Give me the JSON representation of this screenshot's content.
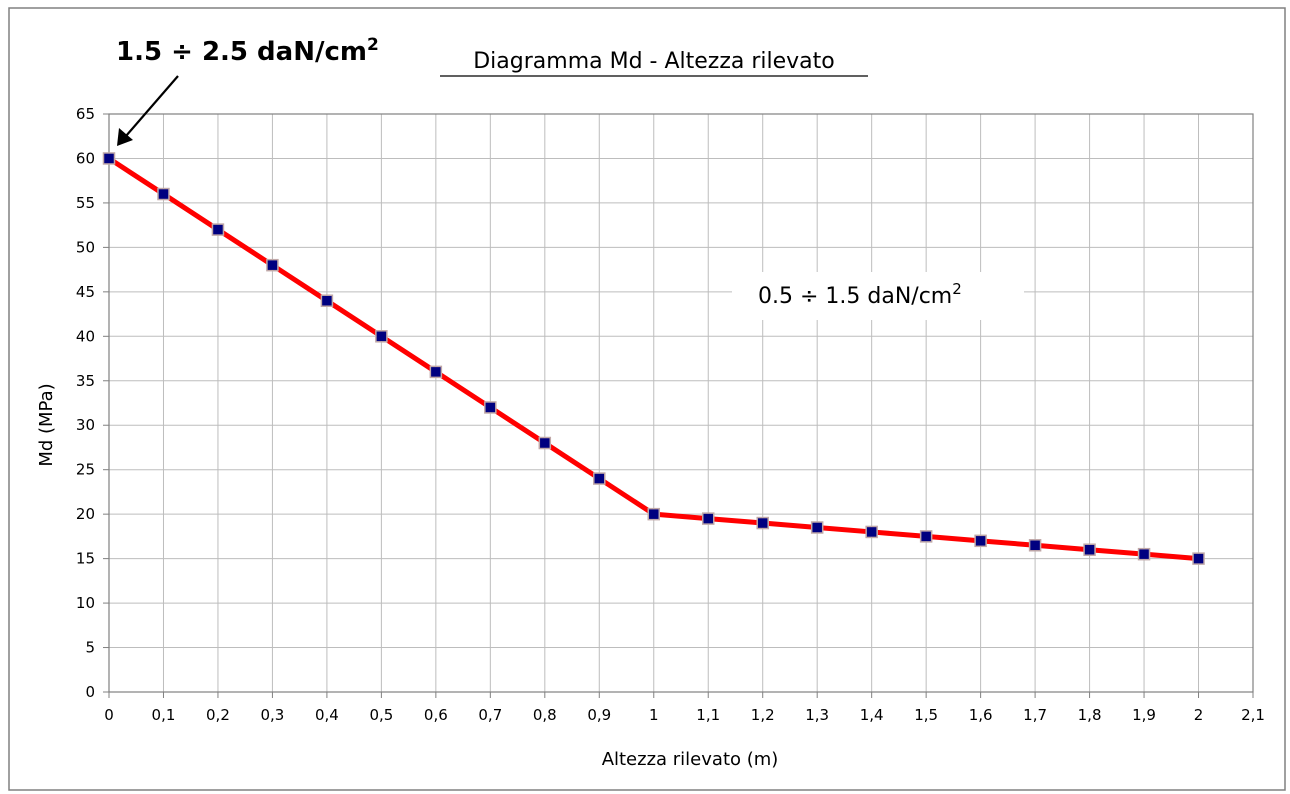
{
  "chart_data": {
    "type": "line",
    "title": "Diagramma Md - Altezza rilevato",
    "xlabel": "Altezza rilevato (m)",
    "ylabel": "Md (MPa)",
    "xlim": [
      0,
      2.1
    ],
    "ylim": [
      0,
      65
    ],
    "x_ticks": [
      "0",
      "0,1",
      "0,2",
      "0,3",
      "0,4",
      "0,5",
      "0,6",
      "0,7",
      "0,8",
      "0,9",
      "1",
      "1,1",
      "1,2",
      "1,3",
      "1,4",
      "1,5",
      "1,6",
      "1,7",
      "1,8",
      "1,9",
      "2",
      "2,1"
    ],
    "y_ticks": [
      "0",
      "5",
      "10",
      "15",
      "20",
      "25",
      "30",
      "35",
      "40",
      "45",
      "50",
      "55",
      "60",
      "65"
    ],
    "grid": true,
    "legend": "none",
    "series": [
      {
        "color": "#ff0000",
        "marker_color": "#000080",
        "x": [
          0,
          0.1,
          0.2,
          0.3,
          0.4,
          0.5,
          0.6,
          0.7,
          0.8,
          0.9,
          1.0,
          1.1,
          1.2,
          1.3,
          1.4,
          1.5,
          1.6,
          1.7,
          1.8,
          1.9,
          2.0
        ],
        "y": [
          60,
          56,
          52,
          48,
          44,
          40,
          36,
          32,
          28,
          24,
          20,
          19.5,
          19,
          18.5,
          18,
          17.5,
          17,
          16.5,
          16,
          15.5,
          15
        ]
      }
    ],
    "annotations": [
      {
        "base": "1.5 ÷ 2.5 daN/cm",
        "sup": "2"
      },
      {
        "base": "0.5 ÷ 1.5 daN/cm",
        "sup": "2"
      }
    ]
  }
}
